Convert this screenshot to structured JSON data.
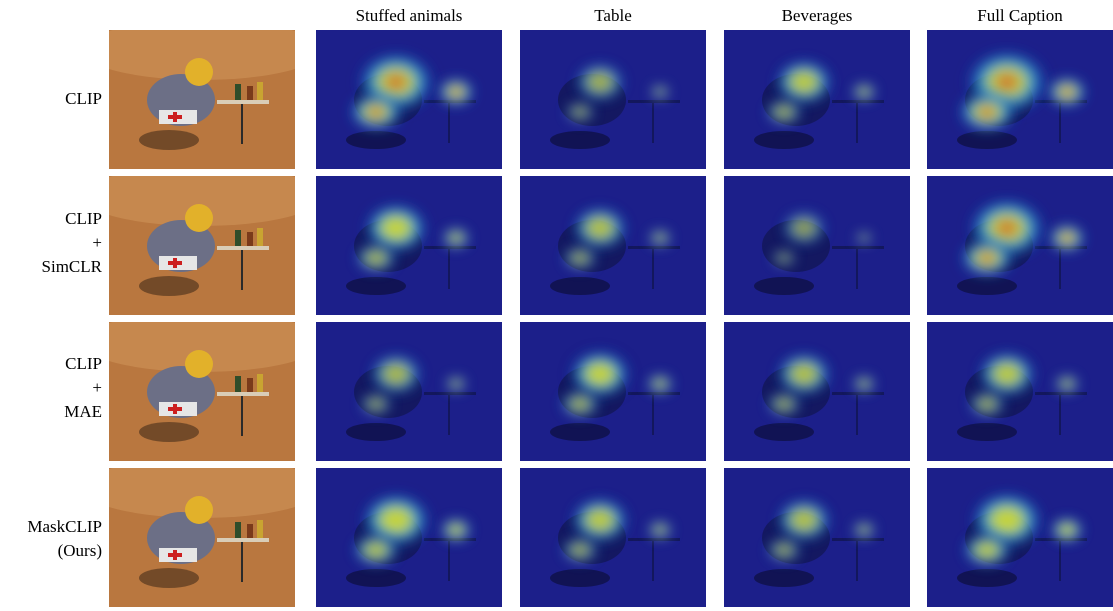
{
  "figure": {
    "columns": [
      "Stuffed animals",
      "Table",
      "Beverages",
      "Full Caption"
    ],
    "rows": [
      {
        "label": "CLIP"
      },
      {
        "label": "CLIP\n+\nSimCLR"
      },
      {
        "label": "CLIP\n+\nMAE"
      },
      {
        "label": "MaskCLIP\n(Ours)"
      }
    ]
  },
  "palette": {
    "sand": "#b9773f",
    "sand_light": "#d49a5e",
    "heat_low": "#1c1f8a",
    "heat_mid": "#23a7e0",
    "heat_high": "#d8e83a",
    "heat_peak": "#e4452c"
  },
  "heatmaps": {
    "note_intensities": [
      [
        0.85,
        0.35,
        0.5,
        0.95
      ],
      [
        0.6,
        0.45,
        0.25,
        0.85
      ],
      [
        0.4,
        0.55,
        0.45,
        0.5
      ],
      [
        0.7,
        0.5,
        0.45,
        0.75
      ]
    ]
  }
}
